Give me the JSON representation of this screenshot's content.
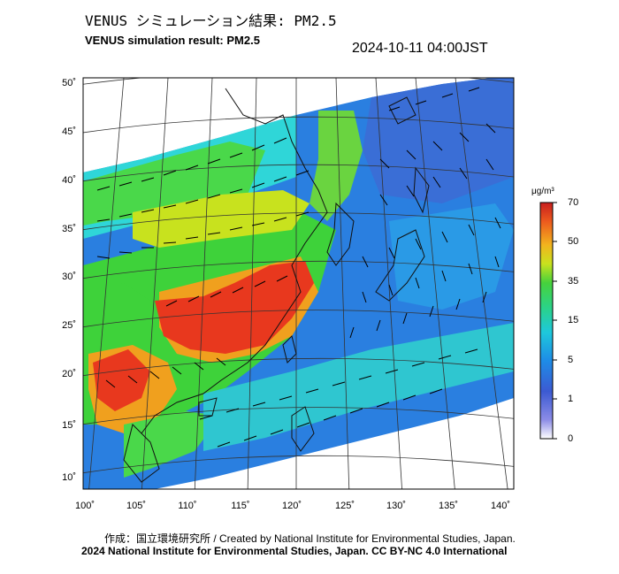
{
  "title_jp": "VENUS シミュレーション結果: PM2.5",
  "title_en": "VENUS simulation result: PM2.5",
  "timestamp": "2024-10-11 04:00JST",
  "map": {
    "lat_labels": [
      "50˚",
      "45˚",
      "40˚",
      "35˚",
      "30˚",
      "25˚",
      "20˚",
      "15˚",
      "10˚"
    ],
    "lon_labels": [
      "100˚",
      "105˚",
      "110˚",
      "115˚",
      "120˚",
      "125˚",
      "130˚",
      "135˚",
      "140˚"
    ],
    "projection": "lambert-conformal",
    "field": "PM2.5 concentration with wind vectors"
  },
  "colorbar": {
    "unit": "μg/m³",
    "ticks": [
      "70",
      "50",
      "35",
      "15",
      "5",
      "1",
      "0"
    ],
    "colors": [
      "#ffffff",
      "#4a4ac8",
      "#1f7fe6",
      "#1fbfe6",
      "#2fd27a",
      "#3ed23a",
      "#c8e21e",
      "#f2c41e",
      "#f08a1e",
      "#e8381e",
      "#c81e1e"
    ]
  },
  "credit": "作成：国立環境研究所 / Created by National Institute for Environmental Studies, Japan.",
  "copyright": "2024 National Institute for Environmental Studies, Japan. CC BY-NC 4.0 International"
}
